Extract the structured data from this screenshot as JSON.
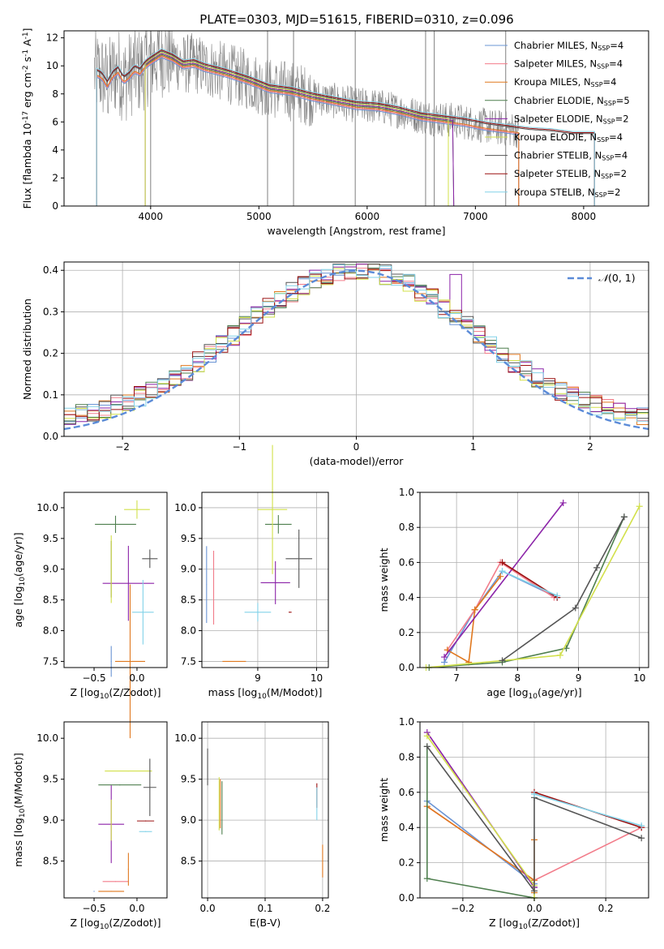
{
  "figure": {
    "title": "PLATE=0303, MJD=51615, FIBERID=0310, z=0.096"
  },
  "model_colors": [
    "#6a94d4",
    "#f27c8a",
    "#e0781f",
    "#4f7f4f",
    "#8b23a8",
    "#d2e04a",
    "#555555",
    "#9b1010",
    "#82d2e8"
  ],
  "chart_data": [
    {
      "id": "spectrum",
      "type": "line",
      "title": "PLATE=0303, MJD=51615, FIBERID=0310, z=0.096",
      "xlabel": "wavelength [Angstrom, rest frame]",
      "ylabel": "Flux [f$_\\lambda 10^{-17}$ erg cm$^{-2}$ s$^{-1}$ A$^{-1}$]",
      "xlim": [
        3200,
        8600
      ],
      "ylim": [
        0,
        12.5
      ],
      "xticks": [
        4000,
        5000,
        6000,
        7000,
        8000
      ],
      "yticks": [
        0,
        2,
        4,
        6,
        8,
        10,
        12
      ],
      "grid": false,
      "legend_position": "upper right",
      "data_line_color": "#808080",
      "continuum": {
        "x": [
          3480,
          3550,
          3600,
          3650,
          3700,
          3750,
          3800,
          3850,
          3900,
          3950,
          4000,
          4100,
          4200,
          4300,
          4400,
          4500,
          4700,
          4900,
          5100,
          5300,
          5500,
          5700,
          5900,
          6100,
          6300,
          6500,
          6700,
          6900,
          7100,
          7300,
          7500,
          7700,
          7900
        ],
        "y": [
          9.6,
          9.3,
          8.7,
          9.4,
          9.7,
          9.0,
          9.3,
          9.8,
          9.6,
          10.1,
          10.4,
          10.9,
          10.6,
          10.1,
          10.2,
          9.9,
          9.5,
          9.0,
          8.4,
          8.2,
          7.8,
          7.5,
          7.2,
          7.1,
          6.8,
          6.4,
          6.2,
          6.0,
          5.7,
          5.5,
          5.3,
          5.2,
          5.0
        ]
      },
      "series": [
        {
          "name": "Chabrier MILES, N$_{SSP}$=4",
          "legend": "Chabrier MILES, N",
          "sub": "SSP",
          "suffix": "=4",
          "lim": [
            3500,
            7400
          ]
        },
        {
          "name": "Salpeter MILES, N$_{SSP}$=4",
          "legend": "Salpeter MILES, N",
          "sub": "SSP",
          "suffix": "=4",
          "lim": [
            3500,
            7400
          ]
        },
        {
          "name": "Kroupa MILES, N$_{SSP}$=4",
          "legend": "Kroupa MILES, N",
          "sub": "SSP",
          "suffix": "=4",
          "lim": [
            3500,
            7400
          ]
        },
        {
          "name": "Chabrier ELODIE, N$_{SSP}$=5",
          "legend": "Chabrier ELODIE, N",
          "sub": "SSP",
          "suffix": "=5",
          "lim": [
            3950,
            6800
          ]
        },
        {
          "name": "Salpeter ELODIE, N$_{SSP}$=2",
          "legend": "Salpeter ELODIE, N",
          "sub": "SSP",
          "suffix": "=2",
          "lim": [
            3950,
            6800
          ]
        },
        {
          "name": "Kroupa ELODIE, N$_{SSP}$=4",
          "legend": "Kroupa ELODIE, N",
          "sub": "SSP",
          "suffix": "=4",
          "lim": [
            3950,
            6750
          ]
        },
        {
          "name": "Chabrier STELIB, N$_{SSP}$=4",
          "legend": "Chabrier STELIB, N",
          "sub": "SSP",
          "suffix": "=4",
          "lim": [
            3500,
            8100
          ]
        },
        {
          "name": "Salpeter STELIB, N$_{SSP}$=2",
          "legend": "Salpeter STELIB, N",
          "sub": "SSP",
          "suffix": "=2",
          "lim": [
            3500,
            8100
          ]
        },
        {
          "name": "Kroupa STELIB, N$_{SSP}$=2",
          "legend": "Kroupa STELIB, N",
          "sub": "SSP",
          "suffix": "=2",
          "lim": [
            3500,
            8100
          ]
        }
      ]
    },
    {
      "id": "residuals",
      "type": "histogram",
      "xlabel": "(data-model)/error",
      "ylabel": "Normed distribution",
      "xlim": [
        -2.5,
        2.5
      ],
      "ylim": [
        0,
        0.42
      ],
      "xticks": [
        -2,
        -1,
        0,
        1,
        2
      ],
      "xticklabels": [
        "−2",
        "−1",
        "0",
        "1",
        "2"
      ],
      "yticks": [
        0.0,
        0.1,
        0.2,
        0.3,
        0.4
      ],
      "yticklabels": [
        "0.0",
        "0.1",
        "0.2",
        "0.3",
        "0.4"
      ],
      "grid": true,
      "bin_width": 0.1,
      "bins_from": -2.5,
      "gaussian": {
        "name": "N(0,1)",
        "mean": 0,
        "sigma": 1,
        "color": "#5b8bd8"
      },
      "legend_label": "(0, 1)",
      "legend_position": "upper right"
    },
    {
      "id": "age_vs_Z",
      "type": "errorbar",
      "xlabel": "Z [log$_{10}$(Z/Z$_\\odot$)]",
      "ylabel": "age  [log$_{10}$(age/yr)]",
      "xlim": [
        -0.85,
        0.35
      ],
      "ylim": [
        7.4,
        10.25
      ],
      "xticks": [
        -0.5,
        0.0
      ],
      "xticklabels": [
        "−0.5",
        "0.0"
      ],
      "yticks": [
        7.5,
        8.0,
        8.5,
        9.0,
        9.5,
        10.0
      ],
      "yticklabels": [
        "7.5",
        "8.0",
        "8.5",
        "9.0",
        "9.5",
        "10.0"
      ],
      "grid": false,
      "points": [
        {
          "m": 4,
          "x": -0.1,
          "xe": 0.6,
          "y": 8.77,
          "ye": 1.22
        },
        {
          "m": 3,
          "x": -0.25,
          "xe": 0.48,
          "y": 9.73,
          "ye": 0.28
        },
        {
          "m": 5,
          "x": 0.0,
          "xe": 0.3,
          "y": 9.97,
          "ye": 0.3
        },
        {
          "m": 6,
          "x": 0.15,
          "xe": 0.18,
          "y": 9.17,
          "ye": 0.3
        },
        {
          "m": 6,
          "x": -0.3,
          "xe": 0.01,
          "y": 9.0,
          "ye": 0.92
        },
        {
          "m": 8,
          "x": 0.07,
          "xe": 0.25,
          "y": 8.3,
          "ye": 1.05
        },
        {
          "m": 2,
          "x": -0.08,
          "xe": 0.35,
          "y": 7.5,
          "ye": 2.5
        },
        {
          "m": 0,
          "x": -0.3,
          "xe": 0.01,
          "y": 7.5,
          "ye": 0.5
        },
        {
          "m": 5,
          "x": -0.3,
          "xe": 0.01,
          "y": 9.0,
          "ye": 1.1
        }
      ]
    },
    {
      "id": "age_vs_mass",
      "type": "errorbar",
      "xlabel": "mass [log$_{10}$(M/M$_\\odot$)]",
      "ylabel": "",
      "xlim": [
        8.05,
        10.2
      ],
      "ylim": [
        7.4,
        10.25
      ],
      "xticks": [
        9,
        10
      ],
      "xticklabels": [
        "9",
        "10"
      ],
      "yticks": [
        7.5,
        8.0,
        8.5,
        9.0,
        9.5,
        10.0
      ],
      "yticklabels": [
        "7.5",
        "8.0",
        "8.5",
        "9.0",
        "9.5",
        "10.0"
      ],
      "grid": true,
      "points": [
        {
          "m": 0,
          "x": 8.13,
          "xe": 0.01,
          "y": 8.75,
          "ye": 1.25
        },
        {
          "m": 1,
          "x": 8.25,
          "xe": 0.01,
          "y": 8.7,
          "ye": 1.2
        },
        {
          "m": 2,
          "x": 8.6,
          "xe": 0.4,
          "y": 7.5,
          "ye": 0.01
        },
        {
          "m": 3,
          "x": 9.35,
          "xe": 0.45,
          "y": 9.73,
          "ye": 0.3
        },
        {
          "m": 4,
          "x": 9.3,
          "xe": 0.5,
          "y": 8.78,
          "ye": 0.7
        },
        {
          "m": 5,
          "x": 9.25,
          "xe": 0.5,
          "y": 9.97,
          "ye": 2.1
        },
        {
          "m": 6,
          "x": 9.7,
          "xe": 0.45,
          "y": 9.17,
          "ye": 0.95
        },
        {
          "m": 7,
          "x": 9.55,
          "xe": 0.05,
          "y": 8.3,
          "ye": 0.01
        },
        {
          "m": 8,
          "x": 9.0,
          "xe": 0.45,
          "y": 8.3,
          "ye": 0.3
        }
      ]
    },
    {
      "id": "mass_weight_vs_age",
      "type": "line",
      "xlabel": "age  [log$_{10}$(age/yr)]",
      "ylabel": "mass weight",
      "xlim": [
        6.4,
        10.15
      ],
      "ylim": [
        0,
        1.0
      ],
      "xticks": [
        7,
        8,
        9,
        10
      ],
      "yticks": [
        0.0,
        0.2,
        0.4,
        0.6,
        0.8,
        1.0
      ],
      "yticklabels": [
        "0.0",
        "0.2",
        "0.4",
        "0.6",
        "0.8",
        "1.0"
      ],
      "grid": true,
      "lines": [
        {
          "m": 0,
          "x": [
            6.8,
            7.3,
            7.75,
            8.65
          ],
          "y": [
            0.03,
            0.33,
            0.55,
            0.4
          ]
        },
        {
          "m": 1,
          "x": [
            6.85,
            7.3,
            7.72,
            8.6
          ],
          "y": [
            0.1,
            0.33,
            0.6,
            0.4
          ]
        },
        {
          "m": 2,
          "x": [
            6.85,
            7.2,
            7.3,
            7.72
          ],
          "y": [
            0.1,
            0.03,
            0.33,
            0.52
          ]
        },
        {
          "m": 3,
          "x": [
            6.55,
            7.75,
            8.8,
            9.75
          ],
          "y": [
            0.0,
            0.03,
            0.11,
            0.86
          ]
        },
        {
          "m": 4,
          "x": [
            6.8,
            8.75
          ],
          "y": [
            0.06,
            0.94
          ]
        },
        {
          "m": 5,
          "x": [
            6.5,
            8.7,
            10.0
          ],
          "y": [
            0.0,
            0.07,
            0.92
          ]
        },
        {
          "m": 6,
          "x": [
            7.75,
            8.95,
            9.3,
            9.75
          ],
          "y": [
            0.04,
            0.34,
            0.57,
            0.86
          ]
        },
        {
          "m": 7,
          "x": [
            7.75,
            8.65
          ],
          "y": [
            0.6,
            0.4
          ]
        },
        {
          "m": 8,
          "x": [
            7.75,
            8.65
          ],
          "y": [
            0.55,
            0.41
          ]
        }
      ]
    },
    {
      "id": "mass_vs_Z",
      "type": "errorbar",
      "xlabel": "Z [log$_{10}$(Z/Z$_\\odot$)]",
      "ylabel": "mass [log$_{10}$(M/M$_\\odot$)]",
      "xlim": [
        -0.85,
        0.35
      ],
      "ylim": [
        8.05,
        10.2
      ],
      "xticks": [
        -0.5,
        0.0
      ],
      "xticklabels": [
        "−0.5",
        "0.0"
      ],
      "yticks": [
        8.5,
        9.0,
        9.5,
        10.0
      ],
      "yticklabels": [
        "8.5",
        "9.0",
        "9.5",
        "10.0"
      ],
      "grid": false,
      "points": [
        {
          "m": 5,
          "x": -0.1,
          "xe": 0.55,
          "y": 9.6,
          "ye": 0.01
        },
        {
          "m": 3,
          "x": -0.2,
          "xe": 0.5,
          "y": 9.43,
          "ye": 0.01
        },
        {
          "m": 6,
          "x": 0.15,
          "xe": 0.15,
          "y": 9.4,
          "ye": 0.7
        },
        {
          "m": 4,
          "x": -0.3,
          "xe": 0.3,
          "y": 8.95,
          "ye": 0.01
        },
        {
          "m": 4,
          "x": -0.3,
          "xe": 0.01,
          "y": 8.95,
          "ye": 0.95
        },
        {
          "m": 7,
          "x": 0.1,
          "xe": 0.2,
          "y": 8.99,
          "ye": 0.01
        },
        {
          "m": 8,
          "x": 0.1,
          "xe": 0.15,
          "y": 8.86,
          "ye": 0.01
        },
        {
          "m": 1,
          "x": -0.25,
          "xe": 0.3,
          "y": 8.25,
          "ye": 0.01
        },
        {
          "m": 2,
          "x": -0.3,
          "xe": 0.3,
          "y": 8.13,
          "ye": 0.01
        },
        {
          "m": 2,
          "x": -0.1,
          "xe": 0.01,
          "y": 8.4,
          "ye": 0.4
        },
        {
          "m": 5,
          "x": -0.3,
          "xe": 0.01,
          "y": 9.0,
          "ye": 0.5
        },
        {
          "m": 0,
          "x": -0.5,
          "xe": 0.01,
          "y": 8.13,
          "ye": 0.01
        }
      ]
    },
    {
      "id": "mass_vs_EBV",
      "type": "errorbar",
      "xlabel": "E(B-V)",
      "ylabel": "",
      "xlim": [
        -0.01,
        0.21
      ],
      "ylim": [
        8.05,
        10.2
      ],
      "xticks": [
        0.0,
        0.1,
        0.2
      ],
      "xticklabels": [
        "0.0",
        "0.1",
        "0.2"
      ],
      "yticks": [
        8.5,
        9.0,
        9.5,
        10.0
      ],
      "yticklabels": [
        "8.5",
        "9.0",
        "9.5",
        "10.0"
      ],
      "grid": true,
      "points": [
        {
          "m": 6,
          "x": 0.0,
          "xe": 0.0,
          "y": 9.65,
          "ye": 0.45
        },
        {
          "m": 5,
          "x": 0.02,
          "xe": 0.0,
          "y": 9.2,
          "ye": 0.65
        },
        {
          "m": 3,
          "x": 0.025,
          "xe": 0.0,
          "y": 9.15,
          "ye": 0.65
        },
        {
          "m": 2,
          "x": 0.022,
          "xe": 0.0,
          "y": 9.2,
          "ye": 0.6
        },
        {
          "m": 7,
          "x": 0.19,
          "xe": 0.0,
          "y": 9.3,
          "ye": 0.3
        },
        {
          "m": 8,
          "x": 0.19,
          "xe": 0.0,
          "y": 9.2,
          "ye": 0.4
        },
        {
          "m": 2,
          "x": 0.2,
          "xe": 0.0,
          "y": 8.5,
          "ye": 0.4
        }
      ]
    },
    {
      "id": "mass_weight_vs_Z",
      "type": "line",
      "xlabel": "Z [log$_{10}$(Z/Z$_\\odot$)]",
      "ylabel": "mass weight",
      "xlim": [
        -0.32,
        0.32
      ],
      "ylim": [
        0,
        1.0
      ],
      "xticks": [
        -0.2,
        0.0,
        0.2
      ],
      "xticklabels": [
        "−0.2",
        "0.0",
        "0.2"
      ],
      "yticks": [
        0.0,
        0.2,
        0.4,
        0.6,
        0.8,
        1.0
      ],
      "yticklabels": [
        "0.0",
        "0.2",
        "0.4",
        "0.6",
        "0.8",
        "1.0"
      ],
      "grid": true,
      "lines": [
        {
          "m": 0,
          "x": [
            -0.3,
            0.0,
            0.0
          ],
          "y": [
            0.55,
            0.08,
            0.03
          ]
        },
        {
          "m": 1,
          "x": [
            -0.3,
            0.0,
            0.3
          ],
          "y": [
            0.52,
            0.1,
            0.4
          ]
        },
        {
          "m": 2,
          "x": [
            -0.3,
            0.0,
            0.0,
            0.0
          ],
          "y": [
            0.52,
            0.1,
            0.33,
            0.03
          ]
        },
        {
          "m": 3,
          "x": [
            -0.3,
            -0.3,
            0.0
          ],
          "y": [
            0.86,
            0.11,
            0.0
          ]
        },
        {
          "m": 4,
          "x": [
            -0.3,
            0.0,
            0.0
          ],
          "y": [
            0.94,
            0.06,
            0.06
          ]
        },
        {
          "m": 5,
          "x": [
            -0.3,
            0.0,
            0.0
          ],
          "y": [
            0.92,
            0.07,
            0.0
          ]
        },
        {
          "m": 6,
          "x": [
            -0.3,
            0.0,
            0.0,
            0.3
          ],
          "y": [
            0.86,
            0.04,
            0.57,
            0.34
          ]
        },
        {
          "m": 7,
          "x": [
            0.0,
            0.3
          ],
          "y": [
            0.6,
            0.4
          ]
        },
        {
          "m": 8,
          "x": [
            0.0,
            0.3
          ],
          "y": [
            0.59,
            0.41
          ]
        }
      ]
    }
  ]
}
